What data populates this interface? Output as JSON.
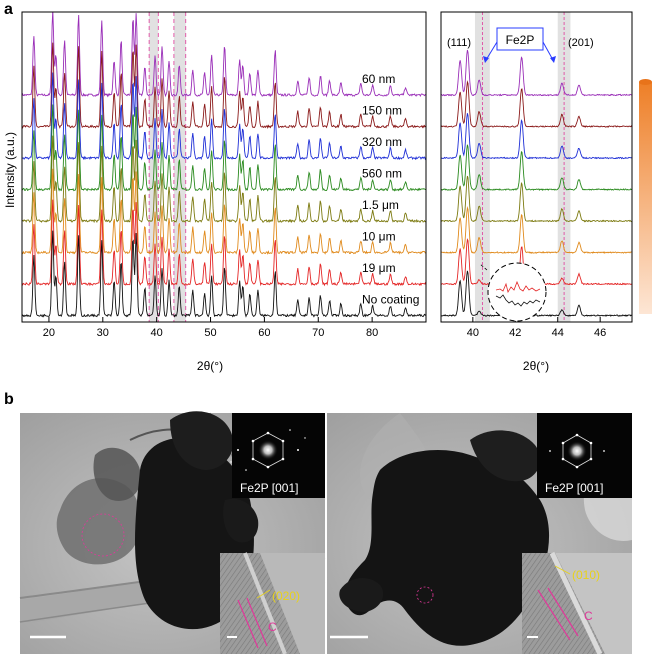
{
  "panels": {
    "a": {
      "label": "a",
      "ylabel": "Intensity (a.u.)",
      "main_xlabel": "2θ(°)",
      "zoom_xlabel": "2θ(°)",
      "main_xticks": [
        "20",
        "30",
        "40",
        "50",
        "60",
        "70",
        "80"
      ],
      "zoom_xticks": [
        "40",
        "42",
        "44",
        "46"
      ],
      "fe2p_label": "Fe2P",
      "peak_left": "(111)",
      "peak_right": "(201)"
    },
    "b": {
      "label": "b",
      "saed_left": "Fe2P [001]",
      "saed_right": "Fe2P [001]",
      "hr_left_plane": "(020)",
      "hr_right_plane": "(010)",
      "hr_left_layer": "C",
      "hr_right_layer": "C"
    }
  },
  "chart_data": [
    {
      "type": "line",
      "title": "",
      "xlabel": "2θ(°)",
      "ylabel": "Intensity (a.u.)",
      "xlim": [
        15,
        90
      ],
      "x_tick_labels": [
        20,
        30,
        40,
        50,
        60,
        70,
        80
      ],
      "grid": false,
      "highlight_bands": [
        [
          38.6,
          40.3
        ],
        [
          43.2,
          45.4
        ]
      ],
      "peaks_x": [
        17.2,
        20.7,
        21.3,
        22.9,
        25.5,
        29.8,
        32.1,
        33.4,
        35.6,
        36.2,
        37.8,
        39.7,
        41.0,
        42.3,
        44.2,
        46.7,
        48.9,
        50.2,
        52.6,
        55.4,
        56.0,
        57.3,
        58.8,
        62.0,
        66.2,
        68.3,
        70.4,
        72.1,
        74.2,
        77.9,
        80.1,
        83.4,
        86.2
      ],
      "series": [
        {
          "name": "60 nm",
          "color": "#9a2fb8"
        },
        {
          "name": "150 nm",
          "color": "#8b1a1a"
        },
        {
          "name": "320 nm",
          "color": "#1f2fd6"
        },
        {
          "name": "560 nm",
          "color": "#2a8a1e"
        },
        {
          "name": "1.5 μm",
          "color": "#7c7a10"
        },
        {
          "name": "10 μm",
          "color": "#e08a1c"
        },
        {
          "name": "19 μm",
          "color": "#e42626"
        },
        {
          "name": "No coating",
          "color": "#111111"
        }
      ]
    },
    {
      "type": "line",
      "title": "",
      "xlabel": "2θ(°)",
      "ylabel": "",
      "xlim": [
        38.5,
        47.5
      ],
      "x_tick_labels": [
        40,
        42,
        44,
        46
      ],
      "grid": false,
      "highlight_bands": [
        [
          40.1,
          40.8
        ],
        [
          44.0,
          44.6
        ]
      ],
      "peaks_x": [
        39.4,
        39.75,
        40.3,
        42.3,
        44.2,
        45.0
      ],
      "annotations": [
        "(111)",
        "Fe2P",
        "(201)"
      ],
      "series": [
        {
          "name": "60 nm",
          "color": "#9a2fb8"
        },
        {
          "name": "150 nm",
          "color": "#8b1a1a"
        },
        {
          "name": "320 nm",
          "color": "#1f2fd6"
        },
        {
          "name": "560 nm",
          "color": "#2a8a1e"
        },
        {
          "name": "1.5 μm",
          "color": "#7c7a10"
        },
        {
          "name": "10 μm",
          "color": "#e08a1c"
        },
        {
          "name": "19 μm",
          "color": "#e42626"
        },
        {
          "name": "No coating",
          "color": "#111111"
        }
      ]
    }
  ]
}
